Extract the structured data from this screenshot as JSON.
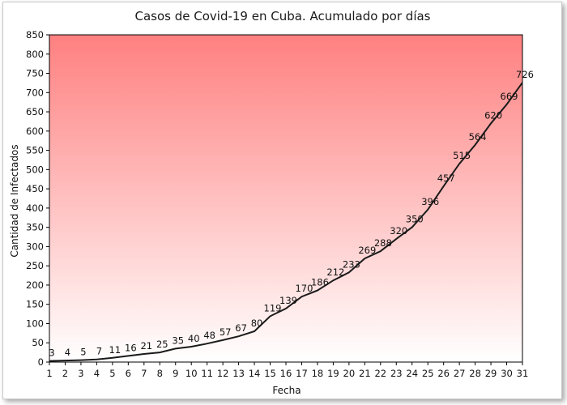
{
  "chart_data": {
    "type": "line",
    "title": "Casos de Covid-19 en Cuba. Acumulado por días",
    "xlabel": "Fecha",
    "ylabel": "Cantidad de Infectados",
    "x": [
      1,
      2,
      3,
      4,
      5,
      6,
      7,
      8,
      9,
      10,
      11,
      12,
      13,
      14,
      15,
      16,
      17,
      18,
      19,
      20,
      21,
      22,
      23,
      24,
      25,
      26,
      27,
      28,
      29,
      30,
      31
    ],
    "values": [
      3,
      4,
      5,
      7,
      11,
      16,
      21,
      25,
      35,
      40,
      48,
      57,
      67,
      80,
      119,
      139,
      170,
      186,
      212,
      233,
      269,
      288,
      320,
      350,
      396,
      457,
      515,
      564,
      620,
      669,
      726
    ],
    "data_labels": [
      "3",
      "4",
      "5",
      "7",
      "11",
      "16",
      "21",
      "25",
      "35",
      "40",
      "48",
      "57",
      "67",
      "80",
      "119",
      "139",
      "170",
      "186",
      "212",
      "233",
      "269",
      "288",
      "320",
      "350",
      "396",
      "457",
      "515",
      "564",
      "620",
      "669",
      "726"
    ],
    "ylim": [
      0,
      850
    ],
    "yticks": [
      0,
      50,
      100,
      150,
      200,
      250,
      300,
      350,
      400,
      450,
      500,
      550,
      600,
      650,
      700,
      750,
      800,
      850
    ],
    "grid": false,
    "legend": "none",
    "colors": {
      "line": "#1a1a1a",
      "gradient_top": "#ff8080",
      "gradient_bottom": "#ffffff"
    }
  }
}
